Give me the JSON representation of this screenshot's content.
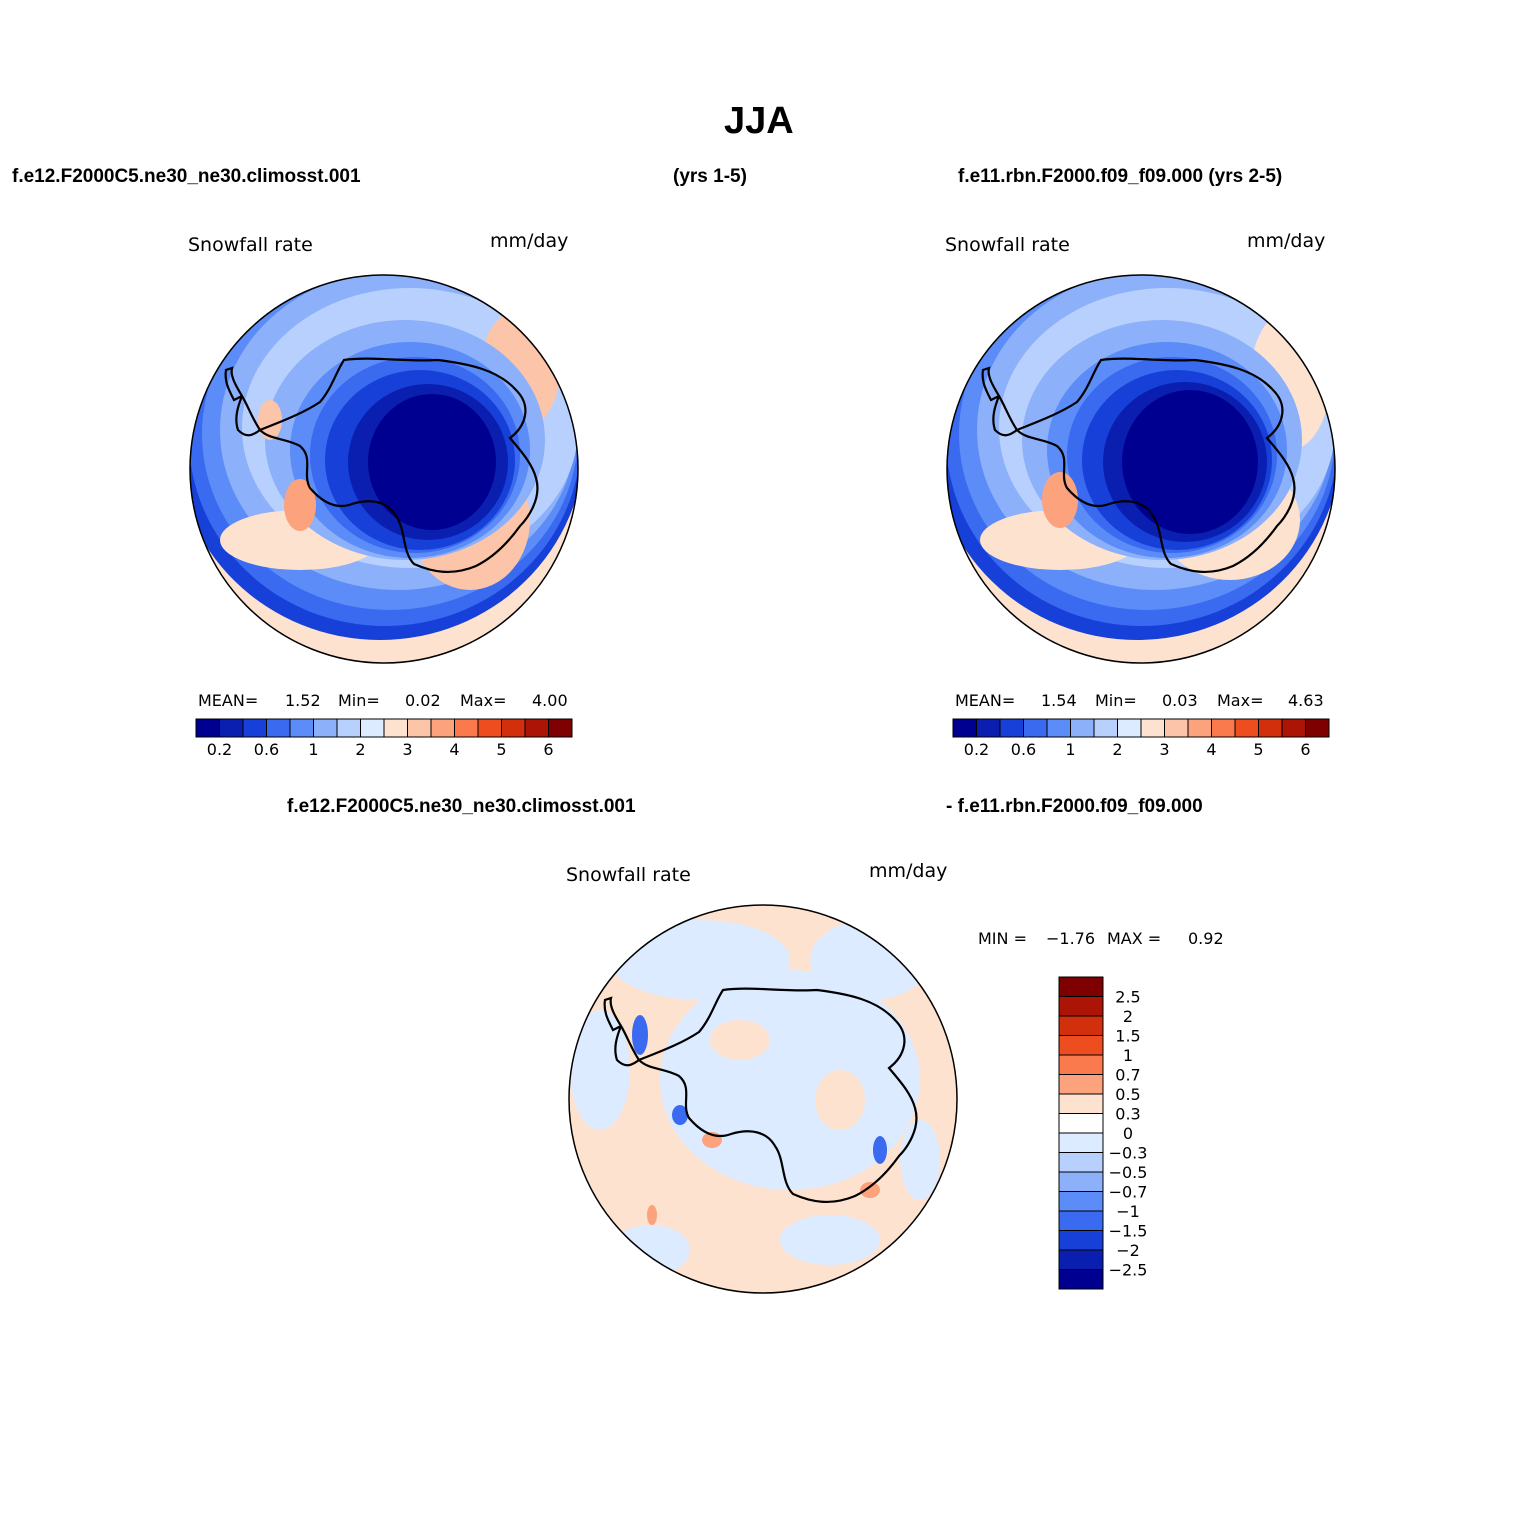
{
  "page_title": "JJA",
  "left_header": "f.e12.F2000C5.ne30_ne30.climosst.001",
  "center_header": "(yrs 1-5)",
  "right_header": "f.e11.rbn.F2000.f09_f09.000 (yrs 2-5)",
  "diff_header_left": "f.e12.F2000C5.ne30_ne30.climosst.001",
  "diff_header_right": "- f.e11.rbn.F2000.f09_f09.000",
  "panels": [
    {
      "variable": "Snowfall rate",
      "units": "mm/day",
      "stats": {
        "mean_label": "MEAN=",
        "mean": "1.52",
        "min_label": "Min=",
        "min": "0.02",
        "max_label": "Max=",
        "max": "4.00"
      }
    },
    {
      "variable": "Snowfall rate",
      "units": "mm/day",
      "stats": {
        "mean_label": "MEAN=",
        "mean": "1.54",
        "min_label": "Min=",
        "min": "0.03",
        "max_label": "Max=",
        "max": "4.63"
      }
    }
  ],
  "diff_panel": {
    "variable": "Snowfall rate",
    "units": "mm/day",
    "min_label": "MIN =",
    "min": "−1.76",
    "max_label": "MAX =",
    "max": "0.92"
  },
  "main_colorbar": {
    "colors": [
      "#000090",
      "#0a1fb0",
      "#1740d8",
      "#3a6af0",
      "#5b8cf7",
      "#8cb1fa",
      "#b8d0fd",
      "#dcebff",
      "#fde2cf",
      "#fcc4a8",
      "#fca27d",
      "#fa7a4e",
      "#ee4e1f",
      "#d22f0c",
      "#ac1505",
      "#7f0000"
    ],
    "labels": [
      "0.2",
      "0.6",
      "1",
      "2",
      "3",
      "4",
      "5",
      "6"
    ]
  },
  "diff_colorbar": {
    "colors": [
      "#7f0000",
      "#ac1505",
      "#d22f0c",
      "#ee4e1f",
      "#fa7a4e",
      "#fca27d",
      "#fde2cf",
      "#ffffff",
      "#dcebff",
      "#b8d0fd",
      "#8cb1fa",
      "#5b8cf7",
      "#3a6af0",
      "#1740d8",
      "#0a1fb0",
      "#000090"
    ],
    "labels": [
      "2.5",
      "2",
      "1.5",
      "1",
      "0.7",
      "0.5",
      "0.3",
      "0",
      "−0.3",
      "−0.5",
      "−0.7",
      "−1",
      "−1.5",
      "−2",
      "−2.5"
    ]
  }
}
